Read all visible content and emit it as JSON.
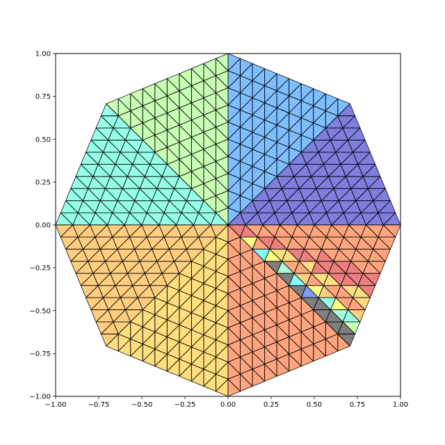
{
  "chart_data": {
    "type": "mesh",
    "title": "",
    "xlabel": "",
    "ylabel": "",
    "xlim": [
      -1.0,
      1.0
    ],
    "ylim": [
      -1.0,
      1.0
    ],
    "grid": false,
    "aspect": "equal",
    "polygon_sides": 8,
    "mesh_subdivisions": 10,
    "wedge_subdivisions_per_segment": 2,
    "vertex_at_angle_deg": 0,
    "edge_color": "#000000",
    "face_alpha": 0.5,
    "colormap": "jet",
    "wedge_values_ccw_from_east": [
      0.06,
      0.18,
      0.3,
      0.25,
      0.38,
      0.52,
      0.45,
      0.42,
      0.62,
      0.72,
      0.8,
      0.69,
      0.91,
      0.8,
      0.98,
      0.88
    ],
    "xticks": [
      -1.0,
      -0.75,
      -0.5,
      -0.25,
      0.0,
      0.25,
      0.5,
      0.75,
      1.0
    ],
    "yticks": [
      -1.0,
      -0.75,
      -0.5,
      -0.25,
      0.0,
      0.25,
      0.5,
      0.75,
      1.0
    ],
    "xtick_labels": [
      "−1.00",
      "−0.75",
      "−0.50",
      "−0.25",
      "0.00",
      "0.25",
      "0.50",
      "0.75",
      "1.00"
    ],
    "ytick_labels": [
      "−1.00",
      "−0.75",
      "−0.50",
      "−0.25",
      "0.00",
      "0.25",
      "0.50",
      "0.75",
      "1.00"
    ]
  }
}
